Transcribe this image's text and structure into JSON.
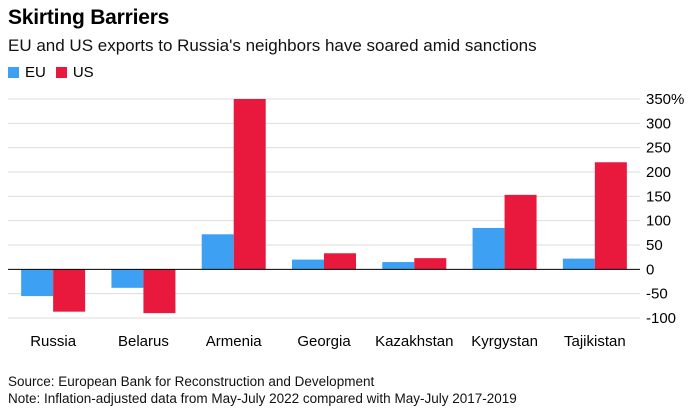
{
  "header": {
    "title": "Skirting Barriers",
    "subtitle": "EU and US exports to Russia's neighbors have soared amid sanctions"
  },
  "footer": {
    "source": "Source: European Bank for Reconstruction and Development",
    "note": "Note: Inflation-adjusted data from May-July 2022 compared with May-July 2017-2019"
  },
  "colors": {
    "EU": "#3ea0f2",
    "US": "#e8193c",
    "grid": "#dddddd",
    "zero": "#000000"
  },
  "chart_data": {
    "type": "bar",
    "categories": [
      "Russia",
      "Belarus",
      "Armenia",
      "Georgia",
      "Kazakhstan",
      "Kyrgystan",
      "Tajikistan"
    ],
    "series": [
      {
        "name": "EU",
        "values": [
          -55,
          -38,
          72,
          20,
          15,
          85,
          22
        ]
      },
      {
        "name": "US",
        "values": [
          -87,
          -90,
          350,
          33,
          23,
          153,
          220
        ]
      }
    ],
    "yticks": [
      "350%",
      "300",
      "250",
      "200",
      "150",
      "100",
      "50",
      "0",
      "-50",
      "-100"
    ],
    "ytick_values": [
      350,
      300,
      250,
      200,
      150,
      100,
      50,
      0,
      -50,
      -100
    ],
    "ylim": [
      -100,
      350
    ],
    "grid": true,
    "legend_position": "top-left",
    "yaxis_side": "right"
  }
}
